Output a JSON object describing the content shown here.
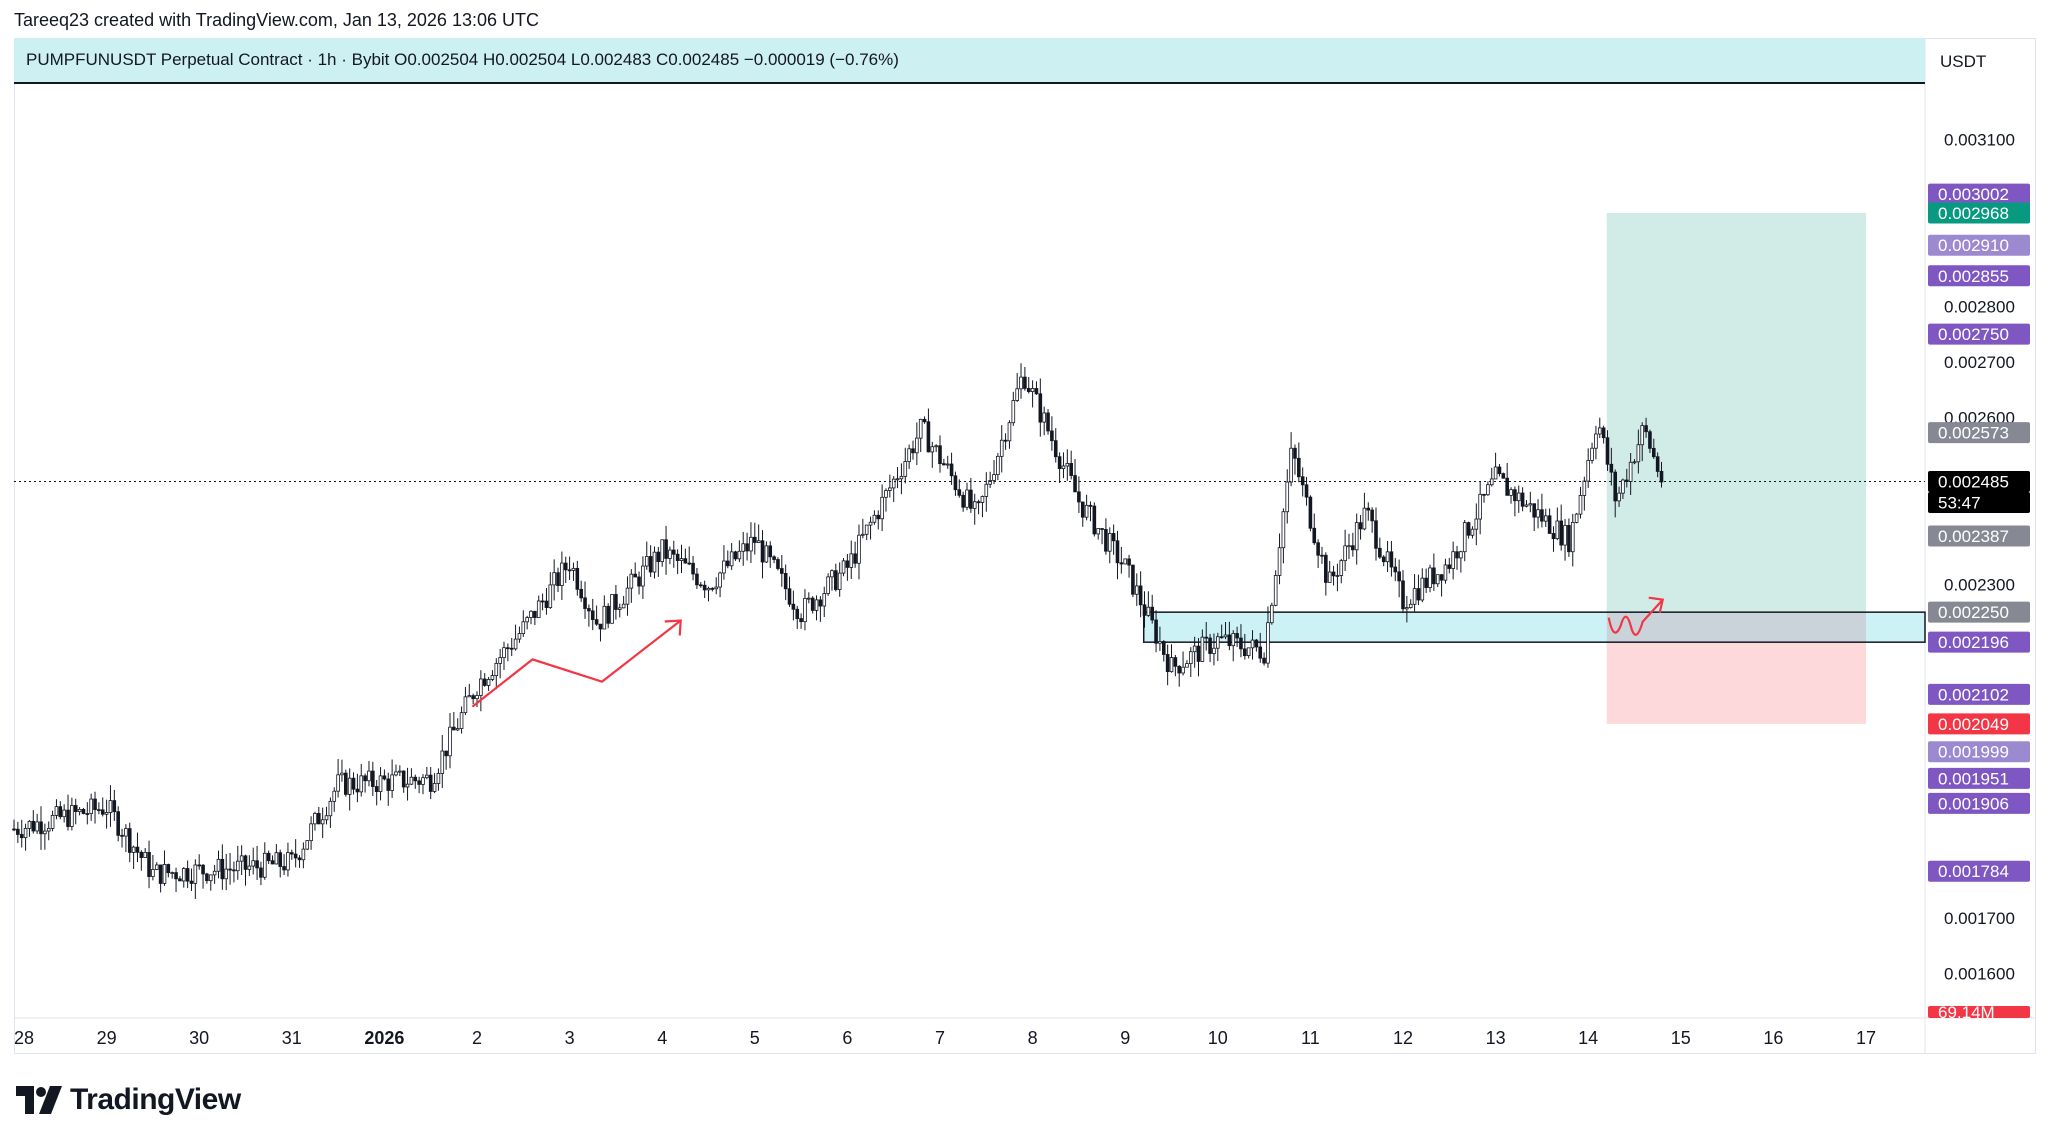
{
  "header": {
    "byline": "Tareeq23 created with TradingView.com, Jan 13, 2026 13:06 UTC",
    "legend": "PUMPFUNUSDT Perpetual Contract · 1h · Bybit   O0.002504   H0.002504   L0.002483   C0.002485   −0.000019 (−0.76%)"
  },
  "axis": {
    "unit": "USDT",
    "price_ticks": [
      "0.003100",
      "0.002800",
      "0.002700",
      "0.002600",
      "0.002300",
      "0.001700",
      "0.001600"
    ],
    "date_ticks": [
      "28",
      "29",
      "30",
      "31",
      "2026",
      "2",
      "3",
      "4",
      "5",
      "6",
      "7",
      "8",
      "9",
      "10",
      "11",
      "12",
      "13",
      "14",
      "15",
      "16",
      "17"
    ]
  },
  "price_labels": [
    {
      "text": "0.003002",
      "color": "#7e57c2"
    },
    {
      "text": "0.002968",
      "color": "#089981"
    },
    {
      "text": "0.002910",
      "color": "#9c8ad0"
    },
    {
      "text": "0.002855",
      "color": "#7e57c2"
    },
    {
      "text": "0.002750",
      "color": "#7e57c2"
    },
    {
      "text": "0.002573",
      "color": "#868993"
    },
    {
      "text": "0.002485",
      "color": "#000000"
    },
    {
      "text": "53:47",
      "color": "#000000"
    },
    {
      "text": "0.002387",
      "color": "#868993"
    },
    {
      "text": "0.002250",
      "color": "#868993"
    },
    {
      "text": "0.002196",
      "color": "#7e57c2"
    },
    {
      "text": "0.002102",
      "color": "#7e57c2"
    },
    {
      "text": "0.002049",
      "color": "#f23645"
    },
    {
      "text": "0.001999",
      "color": "#9c8ad0"
    },
    {
      "text": "0.001951",
      "color": "#7e57c2"
    },
    {
      "text": "0.001906",
      "color": "#7e57c2"
    },
    {
      "text": "0.001784",
      "color": "#7e57c2"
    },
    {
      "text": "69.14M",
      "color": "#f23645"
    }
  ],
  "chart_data": {
    "type": "candlestick",
    "symbol": "PUMPFUNUSDT",
    "interval": "1h",
    "exchange": "Bybit",
    "ylim": [
      0.00152,
      0.0032
    ],
    "x_range_days": [
      28,
      48
    ],
    "last_price": 0.002485,
    "closes_approx": [
      {
        "day": 28.0,
        "close": 0.00186
      },
      {
        "day": 29.0,
        "close": 0.0019
      },
      {
        "day": 29.5,
        "close": 0.00178
      },
      {
        "day": 30.5,
        "close": 0.00179
      },
      {
        "day": 31.0,
        "close": 0.0018
      },
      {
        "day": 31.5,
        "close": 0.00194
      },
      {
        "day": 32.5,
        "close": 0.00195
      },
      {
        "day": 33.0,
        "close": 0.00212
      },
      {
        "day": 33.5,
        "close": 0.00222
      },
      {
        "day": 34.0,
        "close": 0.00234
      },
      {
        "day": 34.3,
        "close": 0.00223
      },
      {
        "day": 35.0,
        "close": 0.00236
      },
      {
        "day": 35.5,
        "close": 0.0023
      },
      {
        "day": 36.0,
        "close": 0.00238
      },
      {
        "day": 36.5,
        "close": 0.00225
      },
      {
        "day": 37.0,
        "close": 0.00233
      },
      {
        "day": 37.8,
        "close": 0.00258
      },
      {
        "day": 38.4,
        "close": 0.00242
      },
      {
        "day": 38.9,
        "close": 0.00268
      },
      {
        "day": 39.5,
        "close": 0.00245
      },
      {
        "day": 40.0,
        "close": 0.00233
      },
      {
        "day": 40.5,
        "close": 0.00215
      },
      {
        "day": 41.0,
        "close": 0.0022
      },
      {
        "day": 41.5,
        "close": 0.00218
      },
      {
        "day": 41.8,
        "close": 0.00254
      },
      {
        "day": 42.2,
        "close": 0.0023
      },
      {
        "day": 42.6,
        "close": 0.00243
      },
      {
        "day": 43.0,
        "close": 0.00227
      },
      {
        "day": 43.5,
        "close": 0.00234
      },
      {
        "day": 44.0,
        "close": 0.00249
      },
      {
        "day": 44.5,
        "close": 0.00242
      },
      {
        "day": 44.8,
        "close": 0.00238
      },
      {
        "day": 45.1,
        "close": 0.0026
      },
      {
        "day": 45.3,
        "close": 0.00245
      },
      {
        "day": 45.6,
        "close": 0.00258
      },
      {
        "day": 45.8,
        "close": 0.002485
      }
    ],
    "annotations": {
      "zone": {
        "top": 0.00225,
        "bottom": 0.002196,
        "from_day": 40.2
      },
      "long_position": {
        "entry": 0.00225,
        "target": 0.002968,
        "stop": 0.002049,
        "from_day": 45.2,
        "to_day": 48.0
      }
    }
  }
}
